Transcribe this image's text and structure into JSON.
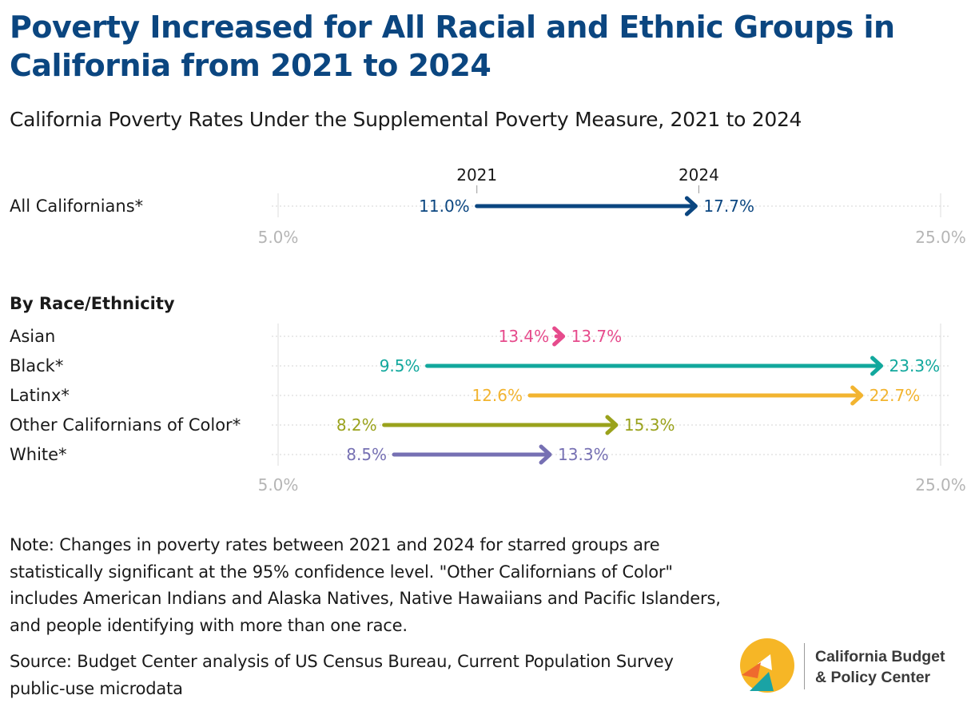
{
  "title": "Poverty Increased for All Racial and Ethnic Groups in California from 2021 to 2024",
  "subtitle": "California Poverty Rates Under the Supplemental Poverty Measure, 2021 to 2024",
  "note": "Note: Changes in poverty rates between 2021 and 2024 for starred groups are statistically significant at the 95% confidence level. \"Other Californians of Color\" includes American Indians and Alaska Natives, Native Hawaiians and Pacific Islanders, and people identifying with more than one race.",
  "source": "Source: Budget Center analysis of US Census Bureau, Current Population Survey public-use microdata",
  "logo": {
    "line1": "California Budget",
    "line2": "& Policy Center",
    "colors": [
      "#f6b626",
      "#ef6a2e",
      "#1aa3a5"
    ]
  },
  "chart_data": [
    {
      "type": "arrow",
      "xlim": [
        5.0,
        25.0
      ],
      "tick_labels": [
        "5.0%",
        "25.0%"
      ],
      "year_labels": [
        "2021",
        "2024"
      ],
      "series": [
        {
          "label": "All Californians*",
          "start": 11.0,
          "end": 17.7,
          "start_label": "11.0%",
          "end_label": "17.7%",
          "color": "#0b4680"
        }
      ]
    },
    {
      "type": "arrow",
      "heading": "By Race/Ethnicity",
      "xlim": [
        5.0,
        25.0
      ],
      "tick_labels": [
        "5.0%",
        "25.0%"
      ],
      "series": [
        {
          "label": "Asian",
          "start": 13.4,
          "end": 13.7,
          "start_label": "13.4%",
          "end_label": "13.7%",
          "color": "#e64b8c"
        },
        {
          "label": "Black*",
          "start": 9.5,
          "end": 23.3,
          "start_label": "9.5%",
          "end_label": "23.3%",
          "color": "#12a89d"
        },
        {
          "label": "Latinx*",
          "start": 12.6,
          "end": 22.7,
          "start_label": "12.6%",
          "end_label": "22.7%",
          "color": "#f2b430"
        },
        {
          "label": "Other Californians of Color*",
          "start": 8.2,
          "end": 15.3,
          "start_label": "8.2%",
          "end_label": "15.3%",
          "color": "#9aa21c"
        },
        {
          "label": "White*",
          "start": 8.5,
          "end": 13.3,
          "start_label": "8.5%",
          "end_label": "13.3%",
          "color": "#7670b3"
        }
      ]
    }
  ]
}
